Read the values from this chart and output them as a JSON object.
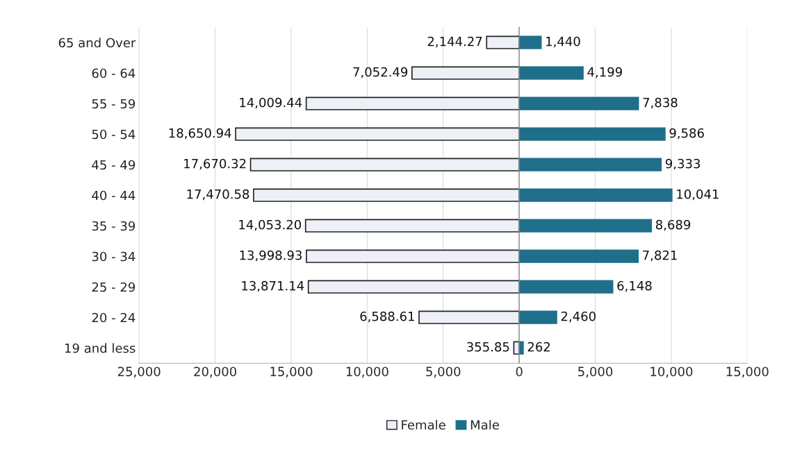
{
  "chart_data": [
    {
      "type": "bar",
      "orientation": "horizontal",
      "categories": [
        "65 and Over",
        "60 - 64",
        "55 - 59",
        "50 - 54",
        "45 - 49",
        "40 - 44",
        "35 - 39",
        "30 - 34",
        "25 - 29",
        "20 - 24",
        "19 and less"
      ],
      "series": [
        {
          "name": "Female",
          "color": "#eef0f8",
          "values": [
            2144.27,
            7052.49,
            14009.44,
            18650.94,
            17670.32,
            17470.58,
            14053.2,
            13998.93,
            13871.14,
            6588.61,
            355.85
          ],
          "value_labels": [
            "2,144.27",
            "7,052.49",
            "14,009.44",
            "18,650.94",
            "17,670.32",
            "17,470.58",
            "14,053.20",
            "13,998.93",
            "13,871.14",
            "6,588.61",
            "355.85"
          ]
        }
      ],
      "xlim": [
        25000,
        0
      ],
      "xticks": [
        {
          "value": 25000,
          "label": "25,000"
        },
        {
          "value": 20000,
          "label": "20,000"
        },
        {
          "value": 15000,
          "label": "15,000"
        },
        {
          "value": 10000,
          "label": "10,000"
        },
        {
          "value": 5000,
          "label": "5,000"
        },
        0
      ],
      "grid": "x",
      "legend": "bottom"
    },
    {
      "type": "bar",
      "orientation": "horizontal",
      "categories": [
        null,
        null,
        null,
        null,
        null,
        null,
        null,
        null,
        null,
        null,
        null
      ],
      "series": [
        {
          "name": "Male",
          "color": "#1f6f8b",
          "values": [
            1440,
            4199,
            7838,
            9586,
            9333,
            10041,
            8689,
            7821,
            6148,
            2460,
            262
          ],
          "value_labels": [
            "1,440",
            "4,199",
            "7,838",
            "9,586",
            "9,333",
            "10,041",
            "8,689",
            "7,821",
            "6,148",
            "2,460",
            "262"
          ]
        }
      ],
      "xlim": [
        0,
        15000
      ],
      "xticks": [
        {
          "value": 0,
          "label": null
        },
        {
          "value": 5000,
          "label": "5,000"
        },
        {
          "value": 10000,
          "label": "10,000"
        },
        {
          "value": 15000,
          "label": "15,000"
        }
      ],
      "tick_labels": "x",
      "grid": "x",
      "legend": "bottom"
    }
  ]
}
